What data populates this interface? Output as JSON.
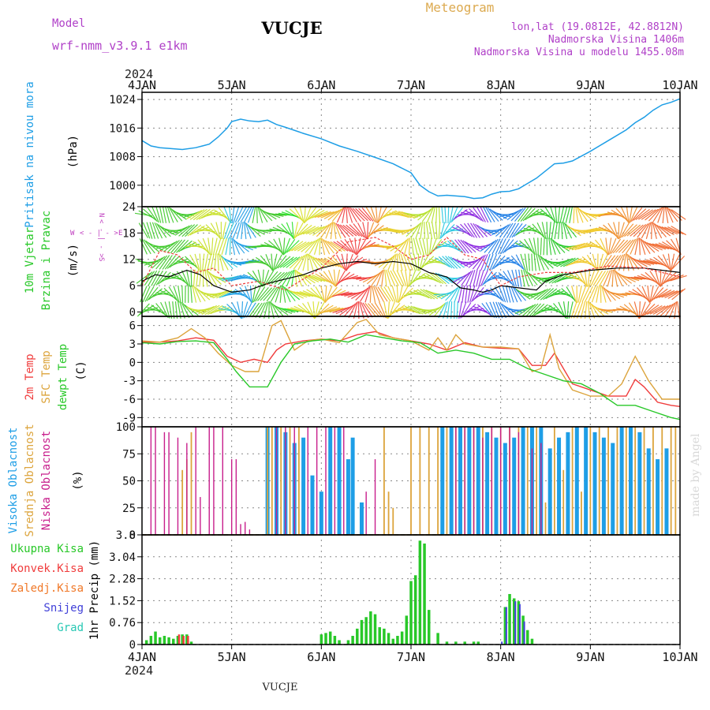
{
  "header": {
    "model_label": "Model",
    "model_name": "wrf-nmm_v3.9.1 e1km",
    "station": "VUCJE",
    "product": "Meteogram",
    "coords": "lon,lat (19.0812E, 42.8812N)",
    "elevation": "Nadmorska Visina 1406m",
    "model_elevation": "Nadmorska Visina u modelu 1455.08m",
    "footer_station": "VUCJE",
    "credit": "made by Angel"
  },
  "colors": {
    "pressure": "#1e9ee6",
    "t2m": "#f03c3c",
    "sfc": "#dca43c",
    "dewpt": "#28c828",
    "cloud_high": "#1e9ee6",
    "cloud_mid": "#dca43c",
    "cloud_low": "#c81e8c",
    "rain_total": "#28c828",
    "rain_conv": "#f03c3c",
    "rain_frz": "#f07828",
    "snow": "#4040d8",
    "hail": "#28c8b4",
    "wind_label": "#c040c0"
  },
  "time_axis": {
    "year": "2024",
    "ticks": [
      "4JAN",
      "5JAN",
      "6JAN",
      "7JAN",
      "8JAN",
      "9JAN",
      "10JAN"
    ]
  },
  "compass": {
    "n": "N",
    "s": "S",
    "e": "E",
    "w": "W",
    "arrows_ns": "< - | - >",
    "arrows_ew": "< - | - >"
  },
  "panels": {
    "pressure": {
      "label": "Pritisak na nivou mora",
      "unit": "(hPa)"
    },
    "wind": {
      "label1": "10m Vjetar",
      "label2": "Brzina i Pravac",
      "unit": "(m/s)"
    },
    "temp": {
      "label1": "2m Temp",
      "label2": "SFC Temp",
      "label3": "dewpt Temp",
      "unit": "(C)"
    },
    "cloud": {
      "label1": "Visoka Oblacnost",
      "label2": "Srednja Oblacnost",
      "label3": "Niska Oblacnost",
      "unit": "(%)"
    },
    "precip": {
      "legend": [
        "Ukupna Kisa",
        "Konvek.Kisa",
        "Zaledj.Kisa",
        "Snijeg",
        "Grad"
      ],
      "unit": "1hr Precip (mm)"
    }
  },
  "chart_data": [
    {
      "type": "line",
      "panel": "pressure",
      "x_unit": "days since 4JAN 00UTC",
      "yticks": [
        1000,
        1008,
        1016,
        1024
      ],
      "ylim": [
        994,
        1026
      ],
      "grid": true,
      "series": [
        {
          "values_x": [
            0,
            0.1,
            0.2,
            0.3,
            0.45,
            0.6,
            0.75,
            0.85,
            0.95,
            1.0,
            1.1,
            1.2,
            1.3,
            1.4,
            1.5,
            1.6,
            1.8,
            2.0,
            2.2,
            2.4,
            2.6,
            2.8,
            3.0,
            3.1,
            3.2,
            3.3,
            3.4,
            3.5,
            3.6,
            3.7,
            3.8,
            3.9,
            4.0,
            4.1,
            4.2,
            4.3,
            4.4,
            4.5,
            4.6,
            4.7,
            4.8,
            5.0,
            5.2,
            5.4,
            5.5,
            5.6,
            5.7,
            5.8,
            5.9,
            6.0
          ],
          "values": [
            1012.5,
            1011,
            1010.5,
            1010.3,
            1010,
            1010.5,
            1011.5,
            1013.5,
            1016,
            1017.8,
            1018.5,
            1018,
            1017.8,
            1018.2,
            1017,
            1016.2,
            1014.5,
            1013,
            1011,
            1009.5,
            1007.8,
            1006,
            1003.5,
            1000,
            998.2,
            997,
            997.2,
            997,
            996.8,
            996.3,
            996.5,
            997.5,
            998.2,
            998.3,
            999,
            1000.5,
            1002,
            1004,
            1006,
            1006.2,
            1006.8,
            1009.5,
            1012.5,
            1015.5,
            1017.5,
            1019,
            1021,
            1022.5,
            1023.2,
            1024.2
          ]
        }
      ]
    },
    {
      "type": "line",
      "panel": "wind",
      "yticks": [
        0,
        6,
        12,
        18,
        24
      ],
      "ylim": [
        -1,
        24
      ],
      "grid": true,
      "series": [
        {
          "name": "speed",
          "values_x": [
            0,
            0.15,
            0.3,
            0.5,
            0.65,
            0.8,
            1.0,
            1.2,
            1.4,
            1.6,
            1.8,
            2.0,
            2.2,
            2.4,
            2.6,
            2.8,
            3.0,
            3.2,
            3.4,
            3.55,
            3.7,
            3.8,
            3.9,
            4.0,
            4.2,
            4.4,
            4.5,
            4.7,
            5.0,
            5.3,
            5.6,
            5.8,
            6.0
          ],
          "values": [
            7,
            8.5,
            8,
            9.5,
            8.5,
            6,
            4.5,
            5,
            6.5,
            7.5,
            8.5,
            10,
            11,
            11.5,
            11,
            11.5,
            11,
            9,
            8,
            5.5,
            5,
            4.5,
            5,
            6,
            5.5,
            5,
            7,
            8.5,
            9.5,
            10,
            10,
            9.5,
            9
          ]
        },
        {
          "name": "gust",
          "values_x": [
            0,
            0.2,
            0.4,
            0.6,
            0.8,
            1.0,
            1.3,
            1.6,
            2.0,
            2.3,
            2.6,
            2.8,
            3.0,
            3.2,
            3.4,
            3.6,
            3.8,
            4.0,
            4.2,
            4.5,
            4.8,
            5.2,
            5.6,
            6.0
          ],
          "values": [
            6,
            14,
            13,
            9,
            10,
            6,
            7,
            5,
            10,
            16,
            17,
            15,
            12,
            13,
            17,
            13,
            12,
            6,
            8,
            9,
            9,
            10.5,
            10,
            8
          ]
        }
      ]
    },
    {
      "type": "line",
      "panel": "temp",
      "yticks": [
        -9,
        -6,
        -3,
        0,
        3,
        6
      ],
      "ylim": [
        -10.5,
        7.5
      ],
      "grid": true,
      "series": [
        {
          "name": "2m Temp",
          "values_x": [
            0,
            0.2,
            0.4,
            0.6,
            0.8,
            0.95,
            1.1,
            1.25,
            1.4,
            1.5,
            1.6,
            1.8,
            2.0,
            2.2,
            2.4,
            2.6,
            2.8,
            3.0,
            3.2,
            3.4,
            3.6,
            3.8,
            4.0,
            4.2,
            4.35,
            4.5,
            4.6,
            4.7,
            4.8,
            5.0,
            5.2,
            5.4,
            5.5,
            5.6,
            5.75,
            5.9,
            6.0
          ],
          "values": [
            3.3,
            3.3,
            3.5,
            4,
            3.6,
            1,
            0,
            0.5,
            0,
            2,
            3,
            3.5,
            3.8,
            3.5,
            4.5,
            5,
            4,
            3.5,
            3,
            2,
            3.2,
            2.5,
            2.3,
            2.2,
            -0.5,
            -0.5,
            1.5,
            -1,
            -3.5,
            -4.5,
            -5.5,
            -5.5,
            -2.8,
            -4,
            -6.5,
            -7,
            -7.2
          ]
        },
        {
          "name": "SFC Temp",
          "values_x": [
            0,
            0.2,
            0.4,
            0.55,
            0.7,
            0.85,
            1.0,
            1.15,
            1.3,
            1.45,
            1.55,
            1.7,
            1.85,
            2.0,
            2.2,
            2.4,
            2.5,
            2.65,
            2.8,
            3.0,
            3.2,
            3.3,
            3.4,
            3.5,
            3.6,
            3.8,
            4.0,
            4.2,
            4.35,
            4.45,
            4.55,
            4.65,
            4.8,
            5.0,
            5.2,
            5.35,
            5.5,
            5.65,
            5.8,
            6.0
          ],
          "values": [
            3.5,
            3.3,
            4,
            5.5,
            4,
            1.5,
            -0.5,
            -1.5,
            -1.5,
            6,
            6.8,
            2,
            3.5,
            3.8,
            3.2,
            6.5,
            7,
            4.5,
            4,
            3.5,
            2,
            4,
            2,
            4.5,
            3,
            2.5,
            2.5,
            2.2,
            -1.5,
            -1,
            4.5,
            -1,
            -4.5,
            -5.5,
            -5.5,
            -3.5,
            1,
            -3,
            -6,
            -6
          ]
        },
        {
          "name": "dewpt Temp",
          "values_x": [
            0,
            0.2,
            0.4,
            0.6,
            0.8,
            0.95,
            1.05,
            1.2,
            1.4,
            1.55,
            1.7,
            1.9,
            2.1,
            2.3,
            2.5,
            2.7,
            2.9,
            3.1,
            3.3,
            3.5,
            3.7,
            3.9,
            4.1,
            4.3,
            4.5,
            4.7,
            4.9,
            5.1,
            5.3,
            5.5,
            5.7,
            5.9,
            6.0
          ],
          "values": [
            3.2,
            3,
            3.4,
            3.5,
            3.2,
            0.5,
            -1.5,
            -4,
            -4,
            0,
            3,
            3.5,
            3.8,
            3.3,
            4.5,
            4,
            3.5,
            3.2,
            1.5,
            2,
            1.5,
            0.5,
            0.5,
            -1,
            -2,
            -3,
            -3.5,
            -5,
            -7,
            -7,
            -8,
            -9,
            -9.3
          ]
        }
      ]
    },
    {
      "type": "bar",
      "panel": "cloud",
      "yticks": [
        0,
        25,
        50,
        75,
        100
      ],
      "ylim": [
        0,
        100
      ],
      "grid": true,
      "series": [
        {
          "name": "Visoka Oblacnost",
          "values_x": [
            1.4,
            1.5,
            1.6,
            1.7,
            1.8,
            1.9,
            2.0,
            2.1,
            2.2,
            2.3,
            2.35,
            2.45,
            3.35,
            3.45,
            3.55,
            3.65,
            3.75,
            3.85,
            3.95,
            4.05,
            4.15,
            4.25,
            4.35,
            4.45,
            4.55,
            4.65,
            4.75,
            4.85,
            4.95,
            5.05,
            5.15,
            5.25,
            5.35,
            5.45,
            5.55,
            5.65,
            5.75,
            5.85
          ],
          "values": [
            100,
            100,
            95,
            85,
            90,
            55,
            40,
            100,
            100,
            70,
            90,
            30,
            100,
            100,
            100,
            100,
            100,
            95,
            90,
            85,
            90,
            100,
            100,
            100,
            80,
            90,
            95,
            100,
            100,
            95,
            90,
            85,
            100,
            100,
            95,
            80,
            70,
            80
          ]
        },
        {
          "name": "Srednja Oblacnost",
          "values_x": [
            0.45,
            0.5,
            0.55,
            1.4,
            1.45,
            1.55,
            1.65,
            1.75,
            2.7,
            2.75,
            2.8,
            3.0,
            3.1,
            3.2,
            3.3,
            3.4,
            3.5,
            3.6,
            3.7,
            3.8,
            3.9,
            4.0,
            4.1,
            4.2,
            4.3,
            4.4,
            4.5,
            4.6,
            4.7,
            4.8,
            4.9,
            5.0,
            5.1,
            5.2,
            5.3,
            5.4,
            5.5,
            5.6,
            5.7,
            5.8,
            5.9,
            5.95
          ],
          "values": [
            60,
            70,
            95,
            100,
            100,
            100,
            100,
            100,
            100,
            40,
            25,
            100,
            100,
            100,
            100,
            100,
            100,
            100,
            100,
            100,
            100,
            100,
            100,
            100,
            100,
            100,
            30,
            100,
            60,
            100,
            40,
            100,
            100,
            100,
            100,
            100,
            100,
            100,
            100,
            100,
            100,
            100
          ]
        },
        {
          "name": "Niska Oblacnost",
          "values_x": [
            0.1,
            0.15,
            0.25,
            0.3,
            0.4,
            0.5,
            0.6,
            0.65,
            0.75,
            0.8,
            0.9,
            1.0,
            1.05,
            1.1,
            1.15,
            1.2,
            1.5,
            1.6,
            1.7,
            1.85,
            1.95,
            2.05,
            2.15,
            2.25,
            2.5,
            2.6,
            3.5,
            3.6,
            3.7,
            3.8,
            3.9,
            4.0,
            4.1,
            4.2,
            4.35,
            4.45
          ],
          "values": [
            100,
            100,
            95,
            95,
            90,
            85,
            100,
            35,
            100,
            100,
            100,
            70,
            70,
            10,
            12,
            5,
            100,
            100,
            100,
            100,
            100,
            100,
            100,
            100,
            40,
            70,
            100,
            100,
            100,
            90,
            100,
            100,
            100,
            95,
            80,
            85
          ]
        }
      ]
    },
    {
      "type": "bar",
      "panel": "precip",
      "yticks": [
        0,
        0.76,
        1.52,
        2.28,
        3.04,
        3.8
      ],
      "ytick_labels": [
        "0",
        "0.76",
        "1.52",
        "2.28",
        "3.04",
        "3.8"
      ],
      "ylim": [
        0,
        3.8
      ],
      "grid": true,
      "series": [
        {
          "name": "Ukupna Kisa",
          "values_x": [
            0.05,
            0.1,
            0.15,
            0.2,
            0.25,
            0.3,
            0.35,
            0.4,
            0.45,
            0.5,
            0.55,
            2.0,
            2.05,
            2.1,
            2.15,
            2.2,
            2.3,
            2.35,
            2.4,
            2.45,
            2.5,
            2.55,
            2.6,
            2.65,
            2.7,
            2.75,
            2.8,
            2.85,
            2.9,
            2.95,
            3.0,
            3.05,
            3.1,
            3.15,
            3.2,
            3.3,
            3.4,
            3.5,
            3.6,
            3.7,
            3.75,
            4.05,
            4.1,
            4.15,
            4.2,
            4.25,
            4.3,
            4.35
          ],
          "values": [
            0.15,
            0.3,
            0.45,
            0.25,
            0.3,
            0.25,
            0.2,
            0.3,
            0.35,
            0.35,
            0.1,
            0.35,
            0.4,
            0.45,
            0.3,
            0.15,
            0.15,
            0.3,
            0.55,
            0.85,
            0.95,
            1.15,
            1.05,
            0.6,
            0.55,
            0.4,
            0.2,
            0.3,
            0.45,
            1.0,
            2.2,
            2.4,
            3.6,
            3.5,
            1.2,
            0.4,
            0.1,
            0.1,
            0.1,
            0.1,
            0.1,
            1.3,
            1.75,
            1.6,
            1.5,
            1.0,
            0.5,
            0.2
          ]
        },
        {
          "name": "Konvek.Kisa",
          "values_x": [
            0.4,
            0.45,
            0.5
          ],
          "values": [
            0.35,
            0.3,
            0.3
          ]
        },
        {
          "name": "Snijeg",
          "values_x": [
            4.0,
            4.05,
            4.15,
            4.2,
            4.25
          ],
          "values": [
            0.1,
            1.3,
            1.5,
            1.4,
            0.8
          ]
        }
      ]
    }
  ]
}
